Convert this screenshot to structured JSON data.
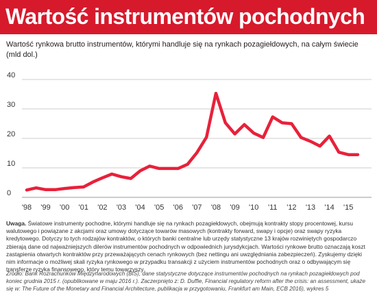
{
  "header": {
    "title": "Wartość instrumentów pochodnych"
  },
  "subtitle": "Wartość rynkowa brutto instrumentów, którymi handluje się na rynkach pozagiełdowych, na całym świecie (mld dol.)",
  "colors": {
    "title_bg": "#d7192c",
    "line": "#e8213a",
    "grid": "#cccccc"
  },
  "chart_data": {
    "type": "line",
    "title": "",
    "xlabel": "",
    "ylabel": "",
    "ylim": [
      0,
      40
    ],
    "yticks": [
      "0",
      "10",
      "20",
      "30",
      "40"
    ],
    "xticks": [
      "'98",
      "'99",
      "'00",
      "'01",
      "'02",
      "'03",
      "'04",
      "'05",
      "'06",
      "'07",
      "'08",
      "'09",
      "'10",
      "'11",
      "'12",
      "'13",
      "'14",
      "'15"
    ],
    "grid": true,
    "series": [
      {
        "x": [
          1998.0,
          1998.5,
          1999.0,
          1999.5,
          2000.0,
          2000.5,
          2001.0,
          2001.5,
          2002.0,
          2002.5,
          2003.0,
          2003.5,
          2004.0,
          2004.5,
          2005.0,
          2005.5,
          2006.0,
          2006.5,
          2007.0,
          2007.5,
          2008.0,
          2008.5,
          2009.0,
          2009.5,
          2010.0,
          2010.5,
          2011.0,
          2011.5,
          2012.0,
          2012.5,
          2013.0,
          2013.5,
          2014.0,
          2014.5,
          2015.0,
          2015.5
        ],
        "values": [
          2.5,
          3.2,
          2.6,
          2.6,
          3.0,
          3.3,
          3.5,
          5.2,
          6.6,
          7.9,
          7.0,
          6.4,
          9.0,
          10.6,
          9.8,
          9.8,
          9.8,
          11.2,
          15.2,
          20.4,
          35.3,
          25.3,
          21.5,
          24.7,
          21.8,
          20.3,
          27.3,
          25.3,
          25.0,
          20.3,
          19.0,
          17.4,
          20.8,
          15.3,
          14.5,
          14.5
        ]
      }
    ]
  },
  "note": {
    "label": "Uwaga.",
    "text": "Światowe instrumenty pochodne, którymi handluje się na rynkach pozagiełdowych, obejmują kontrakty stopy procentowej, kursu walutowego i powiązane z akcjami oraz umowy dotyczące towarów masowych (kontrakty forward, swapy i opcje) oraz swapy ryzyka kredytowego. Dotyczy to tych rodzajów kontraktów, o których banki centralne lub urzędy statystyczne 13 krajów rozwiniętych gospodarczo zbierają dane od najważniejszych dilerów instrumentów pochodnych w odpowiednich jurysdykcjach. Wartości rynkowe brutto oznaczają koszt zastąpienia otwartych kontraktów przy przeważających cenach rynkowych (bez nettingu ani uwzględniania zabezpieczeń). Zyskujemy dzięki nim informacje o możliwej skali ryzyka rynkowego w przypadku transakcji z użyciem instrumentów pochodnych oraz o odbywającym się transferze ryzyka finansowego, który temu towarzyszy."
  },
  "source": {
    "line1": "Źródło: Bank Rozrachunków Międzynarodowych (BIS), dane statystyczne dotyczące instrumentów pochodnych na rynkach pozagiełdowych pod koniec grudnia 2015 r. (opublikowane w maju 2016 r.). Zaczerpnięto z: D. Duffie, Financial regulatory reform after the crisis: an assessment, ukaże się w: The Future of the Monetary and Financial Architecture, publikacja w przygotowaniu, Frankfurt am Main, ECB 2016), wykres 5"
  }
}
